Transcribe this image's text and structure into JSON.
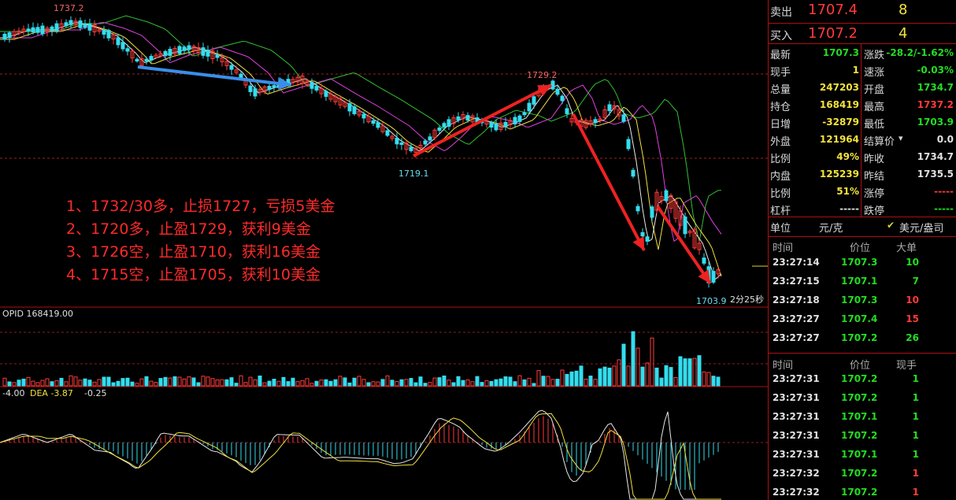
{
  "chart": {
    "price_high_label": "1737.2",
    "price_label_1729": "1729.2",
    "price_label_1719": "1719.1",
    "price_low_label": "1703.9",
    "countdown": "2分25秒",
    "opid_label": "OPID 168419.00",
    "macd_prefix": "-4.00",
    "dea_label": "DEA -3.87",
    "macd_value": "-0.25"
  },
  "notes": [
    "1、1732/30多，止损1727，亏损5美金",
    "2、1720多，止盈1729，获利9美金",
    "3、1726空，止盈1710，获利16美金",
    "4、1715空，止盈1705，获利10美金"
  ],
  "quote": {
    "sell_label": "卖出",
    "sell_price": "1707.4",
    "sell_qty": "8",
    "buy_label": "买入",
    "buy_price": "1707.2",
    "buy_qty": "4",
    "stats_left": [
      {
        "label": "最新",
        "value": "1707.3",
        "color": "green"
      },
      {
        "label": "现手",
        "value": "1",
        "color": "yellow"
      },
      {
        "label": "总量",
        "value": "247203",
        "color": "yellow"
      },
      {
        "label": "持仓",
        "value": "168419",
        "color": "yellow"
      },
      {
        "label": "日增",
        "value": "-32879",
        "color": "yellow"
      },
      {
        "label": "外盘",
        "value": "121964",
        "color": "yellow"
      },
      {
        "label": "比例",
        "value": "49%",
        "color": "yellow"
      },
      {
        "label": "内盘",
        "value": "125239",
        "color": "yellow"
      },
      {
        "label": "比例",
        "value": "51%",
        "color": "yellow"
      },
      {
        "label": "杠杆",
        "value": "-----",
        "color": "white"
      }
    ],
    "stats_right": [
      {
        "label": "涨跌",
        "value": "-28.2/-1.62%",
        "color": "green"
      },
      {
        "label": "速涨",
        "value": "-0.03%",
        "color": "green"
      },
      {
        "label": "开盘",
        "value": "1734.7",
        "color": "green"
      },
      {
        "label": "最高",
        "value": "1737.2",
        "color": "red"
      },
      {
        "label": "最低",
        "value": "1703.9",
        "color": "green"
      },
      {
        "label": "结算价",
        "value": "0.0",
        "color": "white"
      },
      {
        "label": "昨收",
        "value": "1734.7",
        "color": "white"
      },
      {
        "label": "昨结",
        "value": "1735.5",
        "color": "white"
      },
      {
        "label": "涨停",
        "value": "-----",
        "color": "red"
      },
      {
        "label": "跌停",
        "value": "-----",
        "color": "green"
      }
    ],
    "unit_label": "单位",
    "unit_value": "元/克",
    "unit_option": "美元/盎司"
  },
  "big_orders": {
    "headers": [
      "时间",
      "价位",
      "大单"
    ],
    "rows": [
      {
        "time": "23:27:14",
        "price": "1707.3",
        "qty": "10",
        "qty_color": "green"
      },
      {
        "time": "23:27:15",
        "price": "1707.1",
        "qty": "7",
        "qty_color": "green"
      },
      {
        "time": "23:27:18",
        "price": "1707.3",
        "qty": "10",
        "qty_color": "red"
      },
      {
        "time": "23:27:27",
        "price": "1707.4",
        "qty": "15",
        "qty_color": "red"
      },
      {
        "time": "23:27:27",
        "price": "1707.2",
        "qty": "26",
        "qty_color": "green"
      }
    ]
  },
  "ticks": {
    "headers": [
      "时间",
      "价位",
      "现手"
    ],
    "rows": [
      {
        "time": "23:27:31",
        "price": "1707.2",
        "qty": "1",
        "qty_color": "green"
      },
      {
        "time": "23:27:31",
        "price": "1707.2",
        "qty": "1",
        "qty_color": "green"
      },
      {
        "time": "23:27:31",
        "price": "1707.1",
        "qty": "1",
        "qty_color": "green"
      },
      {
        "time": "23:27:31",
        "price": "1707.2",
        "qty": "1",
        "qty_color": "green"
      },
      {
        "time": "23:27:31",
        "price": "1707.1",
        "qty": "1",
        "qty_color": "green"
      },
      {
        "time": "23:27:32",
        "price": "1707.2",
        "qty": "1",
        "qty_color": "red"
      },
      {
        "time": "23:27:32",
        "price": "1707.2",
        "qty": "1",
        "qty_color": "red"
      }
    ]
  },
  "colors": {
    "up": "#ff3a3a",
    "down": "#33ddee",
    "ma_white": "#e8e8e8",
    "ma_yellow": "#f0e040",
    "ma_magenta": "#e040e0",
    "ma_green": "#30c030",
    "arrow_red": "#ee2222",
    "arrow_blue": "#3a8ee8"
  }
}
